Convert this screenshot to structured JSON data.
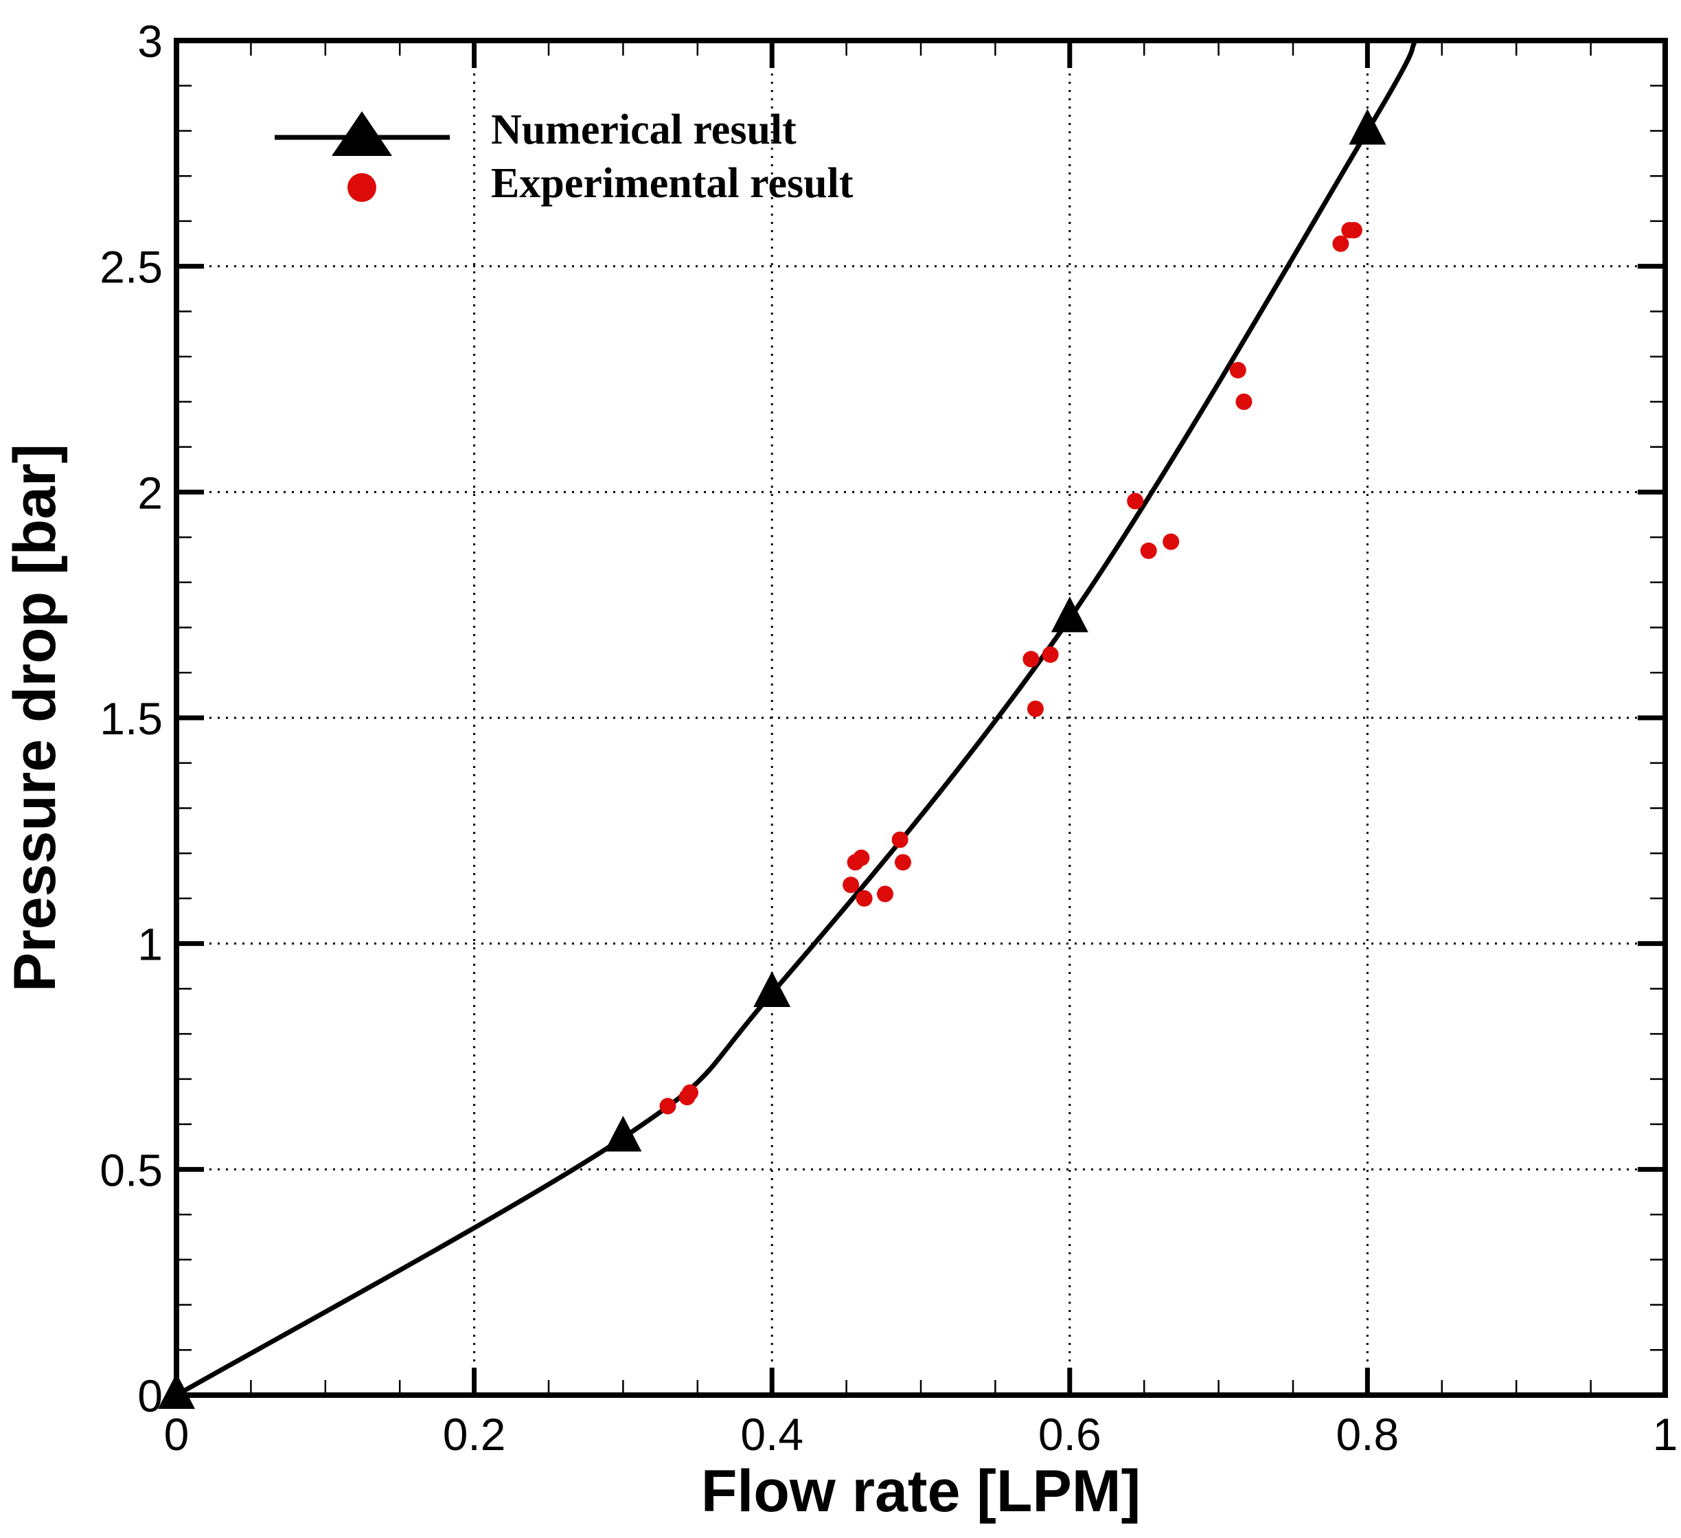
{
  "chart_data": {
    "type": "scatter",
    "xlabel": "Flow rate [LPM]",
    "ylabel": "Pressure drop [bar]",
    "xlim": [
      0,
      1
    ],
    "ylim": [
      0,
      3
    ],
    "x_ticks": [
      0,
      0.2,
      0.4,
      0.6,
      0.8,
      1
    ],
    "x_tick_labels": [
      "0",
      "0.2",
      "0.4",
      "0.6",
      "0.8",
      "1"
    ],
    "y_ticks": [
      0,
      0.5,
      1,
      1.5,
      2,
      2.5,
      3
    ],
    "y_tick_labels": [
      "0",
      "0.5",
      "1",
      "1.5",
      "2",
      "2.5",
      "3"
    ],
    "grid": "dotted, major ticks only",
    "legend_position": "top-left",
    "series": [
      {
        "name": "Numerical result",
        "style": "line with triangle markers",
        "color": "#000000",
        "x": [
          0,
          0.3,
          0.4,
          0.6,
          0.8
        ],
        "y": [
          0,
          0.57,
          0.89,
          1.72,
          2.8
        ]
      },
      {
        "name": "Experimental result",
        "style": "markers",
        "color": "#dd0a0a",
        "x": [
          0.33,
          0.343,
          0.345,
          0.453,
          0.456,
          0.46,
          0.462,
          0.476,
          0.486,
          0.488,
          0.574,
          0.577,
          0.587,
          0.644,
          0.653,
          0.668,
          0.713,
          0.717,
          0.782,
          0.788,
          0.791
        ],
        "y": [
          0.64,
          0.66,
          0.67,
          1.13,
          1.18,
          1.19,
          1.1,
          1.11,
          1.23,
          1.18,
          1.63,
          1.52,
          1.64,
          1.98,
          1.87,
          1.89,
          2.27,
          2.2,
          2.55,
          2.58,
          2.58
        ]
      }
    ]
  }
}
